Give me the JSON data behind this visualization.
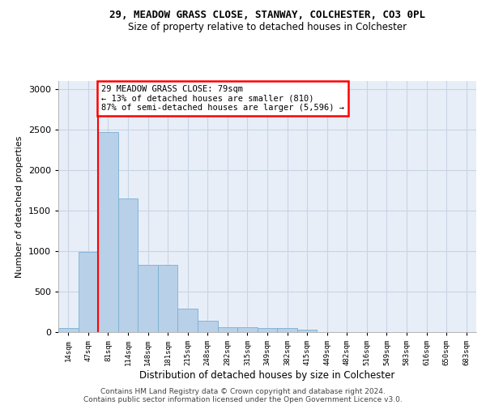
{
  "title_line1": "29, MEADOW GRASS CLOSE, STANWAY, COLCHESTER, CO3 0PL",
  "title_line2": "Size of property relative to detached houses in Colchester",
  "xlabel": "Distribution of detached houses by size in Colchester",
  "ylabel": "Number of detached properties",
  "categories": [
    "14sqm",
    "47sqm",
    "81sqm",
    "114sqm",
    "148sqm",
    "181sqm",
    "215sqm",
    "248sqm",
    "282sqm",
    "315sqm",
    "349sqm",
    "382sqm",
    "415sqm",
    "449sqm",
    "482sqm",
    "516sqm",
    "549sqm",
    "583sqm",
    "616sqm",
    "650sqm",
    "683sqm"
  ],
  "values": [
    55,
    995,
    2470,
    1650,
    835,
    835,
    295,
    140,
    65,
    60,
    55,
    50,
    30,
    0,
    0,
    0,
    0,
    0,
    0,
    0,
    0
  ],
  "bar_color": "#b8d0e8",
  "bar_edge_color": "#7aafd4",
  "annotation_text_line1": "29 MEADOW GRASS CLOSE: 79sqm",
  "annotation_text_line2": "← 13% of detached houses are smaller (810)",
  "annotation_text_line3": "87% of semi-detached houses are larger (5,596) →",
  "ylim": [
    0,
    3100
  ],
  "yticks": [
    0,
    500,
    1000,
    1500,
    2000,
    2500,
    3000
  ],
  "grid_color": "#c8d4e4",
  "background_color": "#e8eef8",
  "footer_line1": "Contains HM Land Registry data © Crown copyright and database right 2024.",
  "footer_line2": "Contains public sector information licensed under the Open Government Licence v3.0."
}
